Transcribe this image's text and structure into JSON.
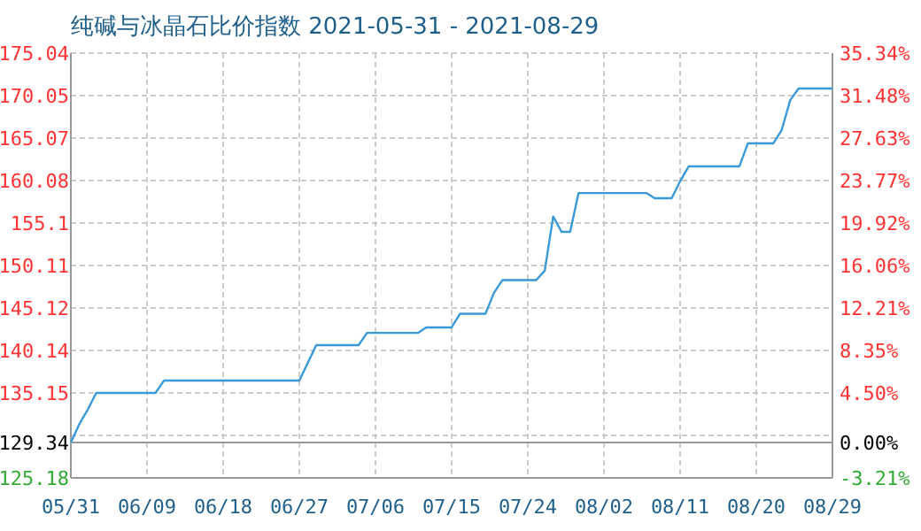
{
  "chart_data": {
    "type": "line",
    "title": "纯碱与冰晶石比价指数 2021-05-31 - 2021-08-29",
    "x": [
      "2021-05-31",
      "2021-06-01",
      "2021-06-02",
      "2021-06-03",
      "2021-06-10",
      "2021-06-11",
      "2021-06-27",
      "2021-06-29",
      "2021-07-04",
      "2021-07-05",
      "2021-07-11",
      "2021-07-12",
      "2021-07-15",
      "2021-07-16",
      "2021-07-19",
      "2021-07-20",
      "2021-07-21",
      "2021-07-25",
      "2021-07-26",
      "2021-07-27",
      "2021-07-28",
      "2021-07-29",
      "2021-07-30",
      "2021-08-07",
      "2021-08-08",
      "2021-08-10",
      "2021-08-11",
      "2021-08-12",
      "2021-08-18",
      "2021-08-19",
      "2021-08-22",
      "2021-08-23",
      "2021-08-24",
      "2021-08-25",
      "2021-08-29"
    ],
    "series": [
      {
        "color": "#3a9ad9",
        "values": [
          129.34,
          131.5,
          133.2,
          135.15,
          135.15,
          136.6,
          136.6,
          140.76,
          140.76,
          142.2,
          142.2,
          142.84,
          142.84,
          144.45,
          144.45,
          146.9,
          148.4,
          148.4,
          149.5,
          155.86,
          154.05,
          154.05,
          158.62,
          158.62,
          158.0,
          158.0,
          160.0,
          161.74,
          161.74,
          164.44,
          164.44,
          166.0,
          169.5,
          170.88,
          170.88
        ]
      }
    ],
    "xlim": [
      "2021-05-31",
      "2021-08-29"
    ],
    "xticks": [
      {
        "value": "2021-05-31",
        "label": "05/31"
      },
      {
        "value": "2021-06-09",
        "label": "06/09"
      },
      {
        "value": "2021-06-18",
        "label": "06/18"
      },
      {
        "value": "2021-06-27",
        "label": "06/27"
      },
      {
        "value": "2021-07-06",
        "label": "07/06"
      },
      {
        "value": "2021-07-15",
        "label": "07/15"
      },
      {
        "value": "2021-07-24",
        "label": "07/24"
      },
      {
        "value": "2021-08-02",
        "label": "08/02"
      },
      {
        "value": "2021-08-11",
        "label": "08/11"
      },
      {
        "value": "2021-08-20",
        "label": "08/20"
      },
      {
        "value": "2021-08-29",
        "label": "08/29"
      }
    ],
    "ylim": [
      125.18,
      175.04
    ],
    "yticks": [
      125.18,
      {
        "value": 130.16,
        "label": null
      },
      135.15,
      140.14,
      145.12,
      150.11,
      155.1,
      160.08,
      165.07,
      170.05,
      175.04
    ],
    "y2lim": [
      -3.21,
      35.34
    ],
    "y2ticks": [
      {
        "value": -3.21,
        "label": "-3.21%"
      },
      {
        "value": 0,
        "label": "0.00%"
      },
      {
        "value": 4.5,
        "label": "4.50%"
      },
      {
        "value": 8.35,
        "label": "8.35%"
      },
      {
        "value": 12.21,
        "label": "12.21%"
      },
      {
        "value": 16.06,
        "label": "16.06%"
      },
      {
        "value": 19.92,
        "label": "19.92%"
      },
      {
        "value": 23.77,
        "label": "23.77%"
      },
      {
        "value": 27.63,
        "label": "27.63%"
      },
      {
        "value": 31.48,
        "label": "31.48%"
      },
      {
        "value": 35.34,
        "label": "35.34%"
      }
    ],
    "ref_lines": [
      {
        "axis": "y",
        "value": 129.34,
        "label": "129.34",
        "color": "#999999"
      }
    ],
    "grid": true
  }
}
